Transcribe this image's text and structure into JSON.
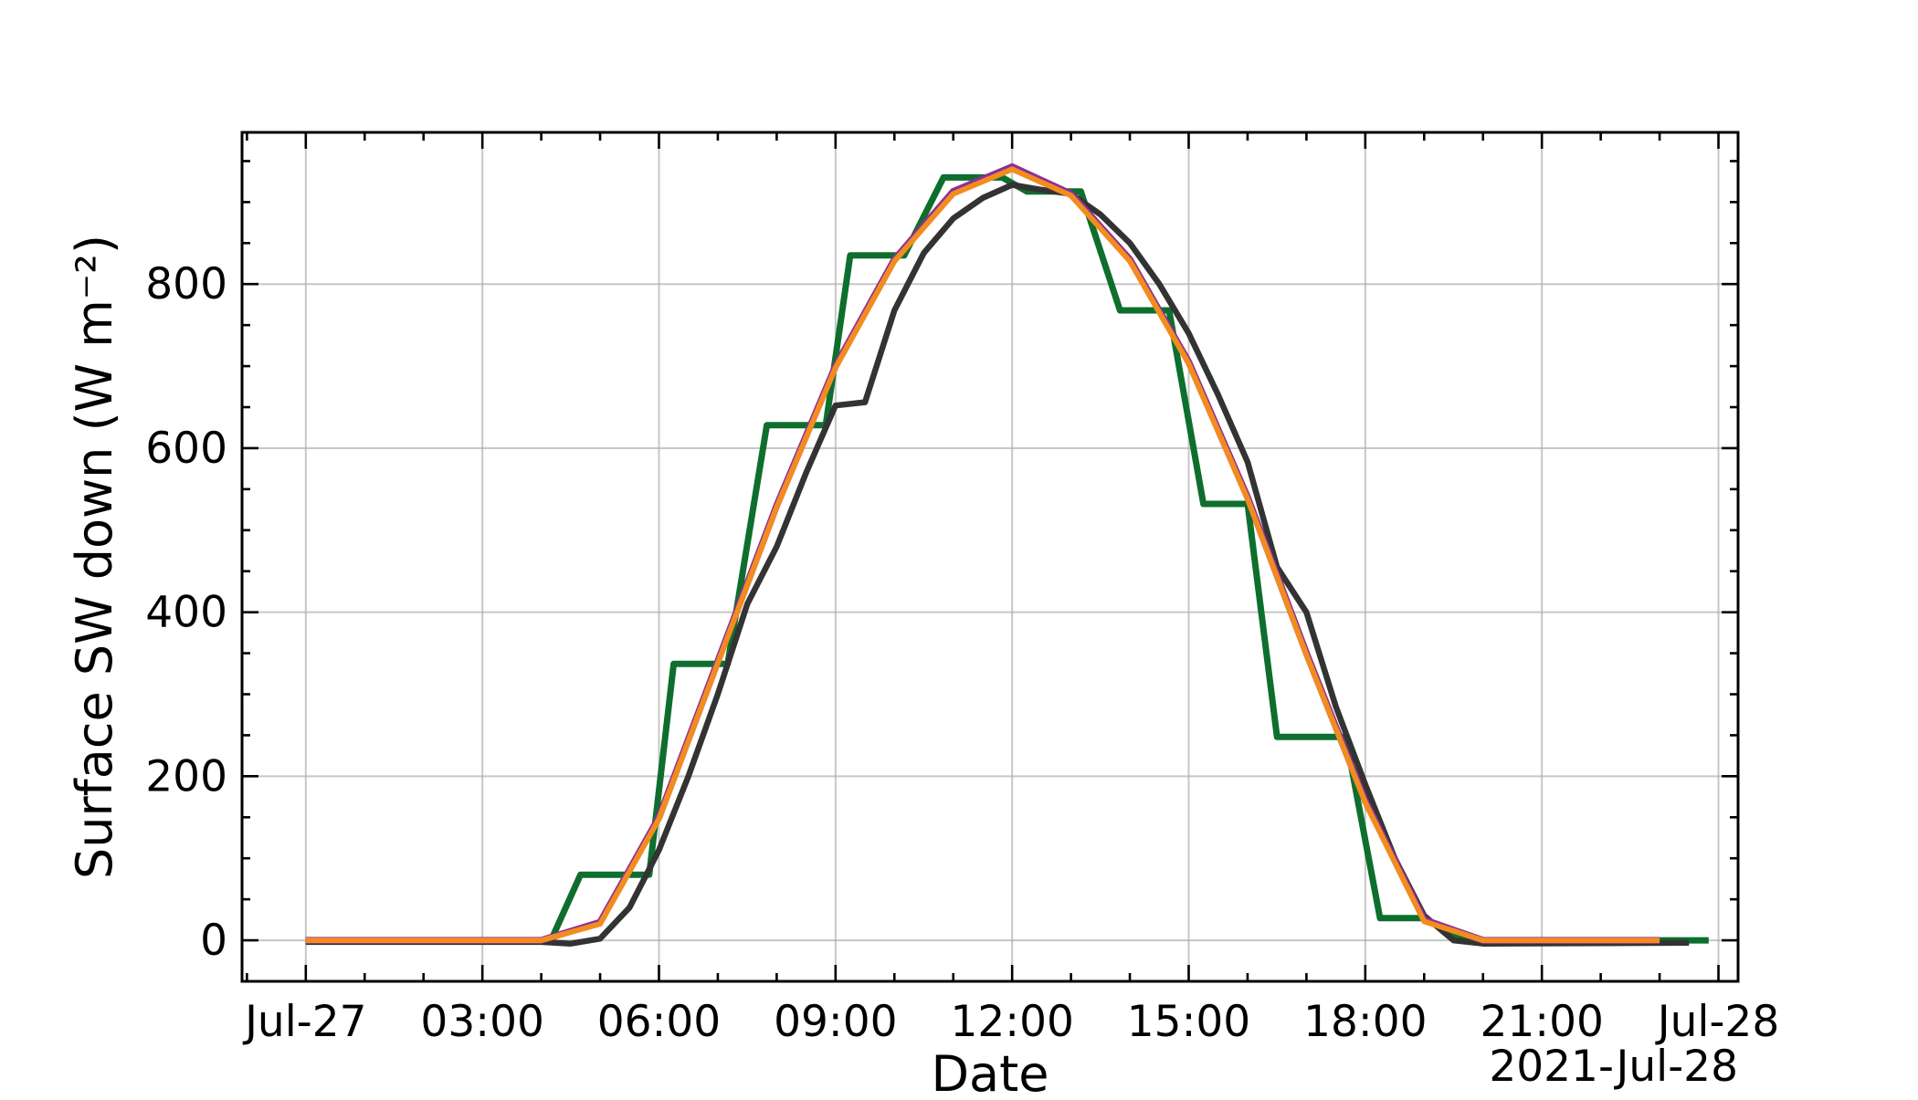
{
  "chart_data": {
    "type": "line",
    "xlabel": "Date",
    "ylabel": "Surface SW down (W m⁻²)",
    "x_offset_label": "2021-Jul-28",
    "xlim": [
      "2021-07-26T22:55",
      "2021-07-28T00:20"
    ],
    "ylim": [
      -50,
      985
    ],
    "grid": true,
    "x_ticks": [
      {
        "t": "2021-07-27T00:00",
        "label": "Jul-27"
      },
      {
        "t": "2021-07-27T03:00",
        "label": "03:00"
      },
      {
        "t": "2021-07-27T06:00",
        "label": "06:00"
      },
      {
        "t": "2021-07-27T09:00",
        "label": "09:00"
      },
      {
        "t": "2021-07-27T12:00",
        "label": "12:00"
      },
      {
        "t": "2021-07-27T15:00",
        "label": "15:00"
      },
      {
        "t": "2021-07-27T18:00",
        "label": "18:00"
      },
      {
        "t": "2021-07-27T21:00",
        "label": "21:00"
      },
      {
        "t": "2021-07-28T00:00",
        "label": "Jul-28"
      }
    ],
    "y_ticks": [
      {
        "v": 0,
        "label": "0"
      },
      {
        "v": 200,
        "label": "200"
      },
      {
        "v": 400,
        "label": "400"
      },
      {
        "v": 600,
        "label": "600"
      },
      {
        "v": 800,
        "label": "800"
      }
    ],
    "series": [
      {
        "color": "#0e6e2e",
        "step": true,
        "points": [
          [
            "2021-07-27T00:00",
            0
          ],
          [
            "2021-07-27T04:10",
            0
          ],
          [
            "2021-07-27T04:40",
            80
          ],
          [
            "2021-07-27T05:50",
            80
          ],
          [
            "2021-07-27T06:15",
            337
          ],
          [
            "2021-07-27T07:10",
            337
          ],
          [
            "2021-07-27T07:50",
            628
          ],
          [
            "2021-07-27T08:50",
            628
          ],
          [
            "2021-07-27T09:15",
            835
          ],
          [
            "2021-07-27T10:10",
            835
          ],
          [
            "2021-07-27T10:50",
            930
          ],
          [
            "2021-07-27T11:50",
            930
          ],
          [
            "2021-07-27T12:15",
            913
          ],
          [
            "2021-07-27T13:10",
            913
          ],
          [
            "2021-07-27T13:50",
            768
          ],
          [
            "2021-07-27T14:40",
            768
          ],
          [
            "2021-07-27T15:15",
            532
          ],
          [
            "2021-07-27T16:00",
            532
          ],
          [
            "2021-07-27T16:30",
            248
          ],
          [
            "2021-07-27T17:40",
            248
          ],
          [
            "2021-07-27T18:15",
            27
          ],
          [
            "2021-07-27T19:00",
            27
          ],
          [
            "2021-07-27T19:40",
            0
          ],
          [
            "2021-07-27T23:50",
            0
          ]
        ]
      },
      {
        "color": "#333333",
        "step": false,
        "points": [
          [
            "2021-07-27T00:00",
            -2
          ],
          [
            "2021-07-27T04:00",
            -2
          ],
          [
            "2021-07-27T04:30",
            -4
          ],
          [
            "2021-07-27T05:00",
            2
          ],
          [
            "2021-07-27T05:30",
            40
          ],
          [
            "2021-07-27T06:00",
            110
          ],
          [
            "2021-07-27T06:30",
            200
          ],
          [
            "2021-07-27T07:00",
            300
          ],
          [
            "2021-07-27T07:30",
            410
          ],
          [
            "2021-07-27T08:00",
            480
          ],
          [
            "2021-07-27T08:30",
            570
          ],
          [
            "2021-07-27T09:00",
            652
          ],
          [
            "2021-07-27T09:30",
            656
          ],
          [
            "2021-07-27T10:00",
            768
          ],
          [
            "2021-07-27T10:30",
            838
          ],
          [
            "2021-07-27T11:00",
            880
          ],
          [
            "2021-07-27T11:30",
            905
          ],
          [
            "2021-07-27T12:00",
            921
          ],
          [
            "2021-07-27T12:30",
            915
          ],
          [
            "2021-07-27T13:00",
            910
          ],
          [
            "2021-07-27T13:30",
            885
          ],
          [
            "2021-07-27T14:00",
            850
          ],
          [
            "2021-07-27T14:30",
            800
          ],
          [
            "2021-07-27T15:00",
            740
          ],
          [
            "2021-07-27T15:30",
            665
          ],
          [
            "2021-07-27T16:00",
            583
          ],
          [
            "2021-07-27T16:30",
            455
          ],
          [
            "2021-07-27T17:00",
            400
          ],
          [
            "2021-07-27T17:30",
            285
          ],
          [
            "2021-07-27T18:00",
            190
          ],
          [
            "2021-07-27T18:30",
            100
          ],
          [
            "2021-07-27T19:00",
            30
          ],
          [
            "2021-07-27T19:30",
            0
          ],
          [
            "2021-07-27T20:00",
            -4
          ],
          [
            "2021-07-27T23:30",
            -3
          ]
        ]
      },
      {
        "color": "#8b2f9a",
        "step": false,
        "points": [
          [
            "2021-07-27T00:00",
            0
          ],
          [
            "2021-07-27T04:00",
            0
          ],
          [
            "2021-07-27T05:00",
            22
          ],
          [
            "2021-07-27T06:00",
            150
          ],
          [
            "2021-07-27T07:00",
            340
          ],
          [
            "2021-07-27T08:00",
            530
          ],
          [
            "2021-07-27T09:00",
            700
          ],
          [
            "2021-07-27T10:00",
            830
          ],
          [
            "2021-07-27T11:00",
            913
          ],
          [
            "2021-07-27T12:00",
            943
          ],
          [
            "2021-07-27T13:00",
            910
          ],
          [
            "2021-07-27T14:00",
            830
          ],
          [
            "2021-07-27T15:00",
            705
          ],
          [
            "2021-07-27T16:00",
            540
          ],
          [
            "2021-07-27T17:00",
            350
          ],
          [
            "2021-07-27T18:00",
            170
          ],
          [
            "2021-07-27T19:00",
            25
          ],
          [
            "2021-07-27T20:00",
            0
          ],
          [
            "2021-07-27T23:00",
            0
          ]
        ]
      },
      {
        "color": "#f28c1e",
        "step": false,
        "points": [
          [
            "2021-07-27T00:00",
            0
          ],
          [
            "2021-07-27T04:00",
            0
          ],
          [
            "2021-07-27T05:00",
            20
          ],
          [
            "2021-07-27T06:00",
            148
          ],
          [
            "2021-07-27T07:00",
            338
          ],
          [
            "2021-07-27T08:00",
            528
          ],
          [
            "2021-07-27T09:00",
            698
          ],
          [
            "2021-07-27T10:00",
            828
          ],
          [
            "2021-07-27T11:00",
            910
          ],
          [
            "2021-07-27T12:00",
            940
          ],
          [
            "2021-07-27T13:00",
            908
          ],
          [
            "2021-07-27T14:00",
            828
          ],
          [
            "2021-07-27T15:00",
            703
          ],
          [
            "2021-07-27T16:00",
            538
          ],
          [
            "2021-07-27T17:00",
            348
          ],
          [
            "2021-07-27T18:00",
            168
          ],
          [
            "2021-07-27T19:00",
            23
          ],
          [
            "2021-07-27T20:00",
            0
          ],
          [
            "2021-07-27T23:00",
            0
          ]
        ]
      }
    ]
  }
}
